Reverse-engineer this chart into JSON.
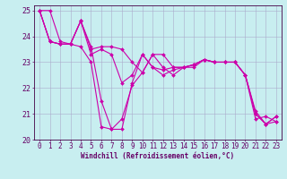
{
  "xlabel": "Windchill (Refroidissement éolien,°C)",
  "ylabel": "",
  "background_color": "#c8eef0",
  "grid_color": "#aaaacc",
  "line_color": "#cc00aa",
  "xlim": [
    -0.5,
    23.5
  ],
  "ylim": [
    20.0,
    25.2
  ],
  "xticks": [
    0,
    1,
    2,
    3,
    4,
    5,
    6,
    7,
    8,
    9,
    10,
    11,
    12,
    13,
    14,
    15,
    16,
    17,
    18,
    19,
    20,
    21,
    22,
    23
  ],
  "yticks": [
    20,
    21,
    22,
    23,
    24,
    25
  ],
  "series": [
    [
      25.0,
      25.0,
      23.8,
      23.7,
      23.6,
      23.0,
      20.5,
      20.4,
      20.8,
      22.1,
      22.6,
      23.3,
      22.8,
      22.5,
      22.8,
      22.8,
      23.1,
      23.0,
      23.0,
      23.0,
      22.5,
      20.8,
      20.9,
      20.7
    ],
    [
      25.0,
      23.8,
      23.7,
      23.7,
      24.6,
      23.6,
      21.5,
      20.4,
      20.4,
      22.2,
      23.3,
      22.8,
      22.5,
      22.7,
      22.8,
      22.9,
      23.1,
      23.0,
      23.0,
      23.0,
      22.5,
      21.1,
      20.6,
      20.9
    ],
    [
      25.0,
      23.8,
      23.7,
      23.7,
      24.6,
      23.3,
      23.5,
      23.3,
      22.2,
      22.5,
      23.3,
      22.8,
      22.7,
      22.8,
      22.8,
      22.9,
      23.1,
      23.0,
      23.0,
      23.0,
      22.5,
      21.0,
      20.6,
      20.9
    ],
    [
      25.0,
      23.8,
      23.7,
      23.7,
      24.6,
      23.5,
      23.6,
      23.6,
      23.5,
      23.0,
      22.6,
      23.3,
      23.3,
      22.8,
      22.8,
      22.9,
      23.1,
      23.0,
      23.0,
      23.0,
      22.5,
      21.0,
      20.6,
      20.7
    ]
  ],
  "tick_fontsize": 5.5,
  "xlabel_fontsize": 5.5,
  "tick_color": "#660066",
  "spine_color": "#440044",
  "marker_size": 2.0,
  "line_width": 0.8
}
